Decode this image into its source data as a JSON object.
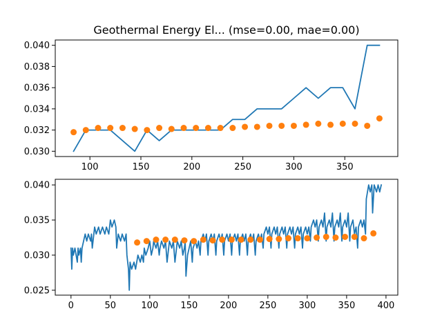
{
  "chart_data": [
    {
      "type": "line+scatter",
      "title": "Geothermal Energy El... (mse=0.00, mae=0.00)",
      "xlim": [
        66,
        402
      ],
      "ylim": [
        0.0295,
        0.0405
      ],
      "xticks": [
        100,
        150,
        200,
        250,
        300,
        350
      ],
      "yticks": [
        0.03,
        0.032,
        0.034,
        0.036,
        0.038,
        0.04
      ],
      "ytick_labels": [
        "0.030",
        "0.032",
        "0.034",
        "0.036",
        "0.038",
        "0.040"
      ],
      "series": [
        {
          "kind": "line",
          "color": "#1f77b4",
          "x": [
            84,
            96,
            108,
            120,
            132,
            144,
            156,
            168,
            180,
            192,
            204,
            216,
            228,
            240,
            252,
            264,
            276,
            288,
            300,
            312,
            324,
            336,
            348,
            360,
            372,
            384
          ],
          "y": [
            0.03,
            0.032,
            0.032,
            0.032,
            0.031,
            0.03,
            0.032,
            0.031,
            0.032,
            0.032,
            0.032,
            0.032,
            0.032,
            0.033,
            0.033,
            0.034,
            0.034,
            0.034,
            0.035,
            0.036,
            0.035,
            0.036,
            0.036,
            0.034,
            0.04,
            0.04
          ]
        },
        {
          "kind": "scatter",
          "color": "#ff7f0e",
          "x": [
            84,
            96,
            108,
            120,
            132,
            144,
            156,
            168,
            180,
            192,
            204,
            216,
            228,
            240,
            252,
            264,
            276,
            288,
            300,
            312,
            324,
            336,
            348,
            360,
            372,
            384
          ],
          "y": [
            0.0318,
            0.032,
            0.0322,
            0.0322,
            0.0322,
            0.0321,
            0.032,
            0.0322,
            0.0321,
            0.0322,
            0.0322,
            0.0322,
            0.0322,
            0.0322,
            0.0323,
            0.0323,
            0.0324,
            0.0324,
            0.0324,
            0.0325,
            0.0326,
            0.0325,
            0.0326,
            0.0326,
            0.0324,
            0.0331
          ]
        }
      ]
    },
    {
      "type": "line+scatter",
      "title": "",
      "xlim": [
        -20,
        415
      ],
      "ylim": [
        0.0243,
        0.0408
      ],
      "xticks": [
        0,
        50,
        100,
        150,
        200,
        250,
        300,
        350,
        400
      ],
      "yticks": [
        0.025,
        0.03,
        0.035,
        0.04
      ],
      "ytick_labels": [
        "0.025",
        "0.030",
        "0.035",
        "0.040"
      ],
      "series": [
        {
          "kind": "line",
          "color": "#1f77b4",
          "x": [
            0,
            1,
            2,
            3,
            5,
            8,
            9,
            10,
            12,
            13,
            14,
            16,
            18,
            20,
            22,
            25,
            26,
            27,
            30,
            32,
            35,
            37,
            40,
            43,
            45,
            48,
            50,
            52,
            55,
            57,
            58,
            60,
            63,
            65,
            68,
            70,
            71,
            73,
            74,
            75,
            77,
            80,
            82,
            85,
            88,
            90,
            92,
            93,
            95,
            98,
            100,
            102,
            104,
            105,
            108,
            110,
            112,
            113,
            115,
            118,
            120,
            122,
            124,
            125,
            128,
            130,
            132,
            134,
            135,
            138,
            140,
            142,
            144,
            145,
            146,
            148,
            150,
            152,
            154,
            155,
            158,
            160,
            162,
            164,
            165,
            168,
            170,
            172,
            174,
            175,
            178,
            180,
            182,
            184,
            185,
            188,
            190,
            192,
            194,
            195,
            198,
            200,
            202,
            204,
            205,
            208,
            210,
            212,
            214,
            215,
            218,
            220,
            222,
            224,
            225,
            228,
            230,
            232,
            234,
            235,
            238,
            240,
            242,
            244,
            245,
            248,
            250,
            252,
            254,
            255,
            258,
            260,
            262,
            264,
            265,
            268,
            270,
            272,
            274,
            275,
            278,
            280,
            282,
            284,
            285,
            288,
            290,
            292,
            294,
            295,
            298,
            300,
            302,
            304,
            305,
            308,
            310,
            312,
            314,
            315,
            318,
            320,
            322,
            324,
            325,
            328,
            330,
            332,
            334,
            335,
            338,
            340,
            342,
            344,
            345,
            348,
            350,
            352,
            354,
            355,
            358,
            360,
            362,
            364,
            365,
            368,
            370,
            372,
            374,
            375,
            378,
            380,
            382,
            383,
            385,
            388,
            390,
            392,
            394
          ],
          "y": [
            0.031,
            0.028,
            0.031,
            0.03,
            0.031,
            0.029,
            0.031,
            0.03,
            0.031,
            0.029,
            0.031,
            0.032,
            0.033,
            0.032,
            0.033,
            0.032,
            0.033,
            0.031,
            0.034,
            0.033,
            0.034,
            0.033,
            0.034,
            0.033,
            0.034,
            0.033,
            0.035,
            0.034,
            0.035,
            0.034,
            0.031,
            0.033,
            0.032,
            0.033,
            0.032,
            0.033,
            0.03,
            0.028,
            0.025,
            0.029,
            0.028,
            0.029,
            0.028,
            0.03,
            0.029,
            0.03,
            0.029,
            0.031,
            0.03,
            0.031,
            0.032,
            0.03,
            0.031,
            0.032,
            0.031,
            0.032,
            0.03,
            0.031,
            0.032,
            0.031,
            0.032,
            0.029,
            0.031,
            0.032,
            0.031,
            0.032,
            0.029,
            0.031,
            0.032,
            0.031,
            0.032,
            0.03,
            0.031,
            0.032,
            0.027,
            0.03,
            0.031,
            0.032,
            0.029,
            0.031,
            0.032,
            0.031,
            0.032,
            0.03,
            0.032,
            0.033,
            0.032,
            0.033,
            0.03,
            0.032,
            0.033,
            0.032,
            0.033,
            0.03,
            0.032,
            0.033,
            0.032,
            0.033,
            0.03,
            0.032,
            0.033,
            0.032,
            0.033,
            0.03,
            0.032,
            0.033,
            0.032,
            0.033,
            0.03,
            0.032,
            0.033,
            0.032,
            0.033,
            0.03,
            0.032,
            0.033,
            0.032,
            0.033,
            0.03,
            0.032,
            0.033,
            0.032,
            0.033,
            0.031,
            0.033,
            0.034,
            0.033,
            0.034,
            0.031,
            0.033,
            0.034,
            0.033,
            0.034,
            0.031,
            0.033,
            0.034,
            0.033,
            0.034,
            0.031,
            0.033,
            0.034,
            0.033,
            0.034,
            0.031,
            0.033,
            0.034,
            0.033,
            0.034,
            0.031,
            0.033,
            0.034,
            0.033,
            0.034,
            0.032,
            0.034,
            0.035,
            0.034,
            0.035,
            0.032,
            0.034,
            0.035,
            0.034,
            0.036,
            0.032,
            0.034,
            0.035,
            0.034,
            0.036,
            0.032,
            0.034,
            0.035,
            0.034,
            0.036,
            0.032,
            0.034,
            0.035,
            0.034,
            0.036,
            0.032,
            0.034,
            0.035,
            0.033,
            0.034,
            0.031,
            0.034,
            0.035,
            0.034,
            0.035,
            0.033,
            0.038,
            0.04,
            0.039,
            0.04,
            0.036,
            0.04,
            0.039,
            0.04,
            0.039,
            0.04
          ]
        },
        {
          "kind": "scatter",
          "color": "#ff7f0e",
          "x": [
            84,
            96,
            108,
            120,
            132,
            144,
            156,
            168,
            180,
            192,
            204,
            216,
            228,
            240,
            252,
            264,
            276,
            288,
            300,
            312,
            324,
            336,
            348,
            360,
            372,
            384
          ],
          "y": [
            0.0318,
            0.032,
            0.0322,
            0.0322,
            0.0322,
            0.0321,
            0.032,
            0.0322,
            0.0321,
            0.0322,
            0.0322,
            0.0322,
            0.0322,
            0.0322,
            0.0323,
            0.0323,
            0.0324,
            0.0324,
            0.0324,
            0.0325,
            0.0326,
            0.0325,
            0.0326,
            0.0326,
            0.0324,
            0.0331
          ]
        }
      ]
    }
  ]
}
